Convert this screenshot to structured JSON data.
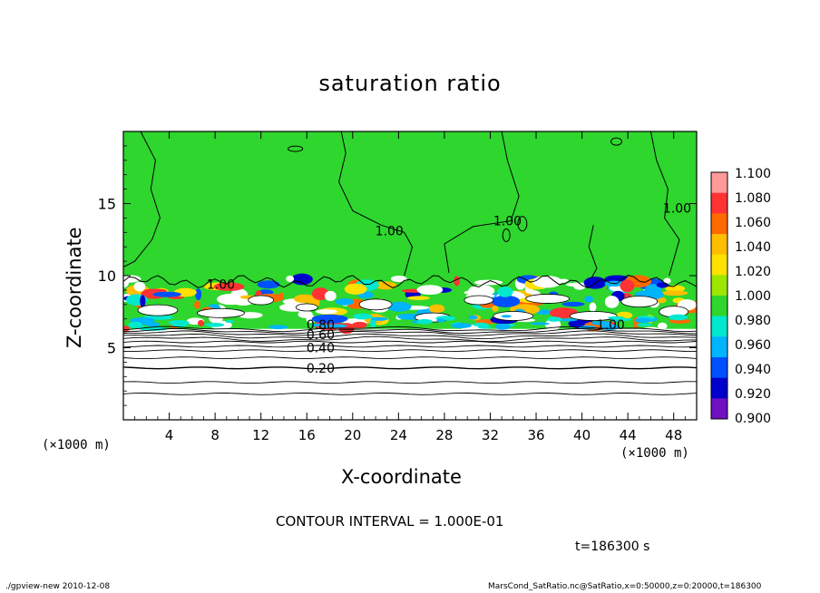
{
  "footer": {
    "left": "./gpview-new   2010-12-08",
    "right": "MarsCond_SatRatio.nc@SatRatio,x=0:50000,z=0:20000,t=186300"
  },
  "annotations": {
    "contour_interval": "CONTOUR INTERVAL = 1.000E-01",
    "time": "t=186300 s",
    "x_unit_left": "(×1000 m)",
    "x_unit_right": "(×1000 m)"
  },
  "chart_data": {
    "type": "heatmap",
    "title": "saturation ratio",
    "xlabel": "X-coordinate",
    "ylabel": "Z-coordinate",
    "xlim": [
      0,
      50
    ],
    "ylim": [
      0,
      20
    ],
    "x_ticks": [
      4,
      8,
      12,
      16,
      20,
      24,
      28,
      32,
      36,
      40,
      44,
      48
    ],
    "y_ticks": [
      5,
      10,
      15
    ],
    "colorbar": {
      "levels": [
        "1.100",
        "1.080",
        "1.060",
        "1.040",
        "1.020",
        "1.000",
        "0.980",
        "0.960",
        "0.940",
        "0.920",
        "0.900"
      ],
      "colors": [
        "#ff9a9a",
        "#ff3333",
        "#ff6a00",
        "#ffbe00",
        "#ffe100",
        "#9de600",
        "#2ed62e",
        "#00e8ce",
        "#00b4ff",
        "#0050ff",
        "#0000cc",
        "#7010c0"
      ]
    },
    "contours": [
      {
        "label": "0.20",
        "z": 3.6
      },
      {
        "label": "0.40",
        "z": 5.1
      },
      {
        "label": "0.60",
        "z": 5.8
      },
      {
        "label": "1.00",
        "z": 9.5
      }
    ],
    "contour_labels": [
      {
        "text": "1.00",
        "x": 8.5,
        "z": 9.4
      },
      {
        "text": "1.00",
        "x": 23.2,
        "z": 13.1
      },
      {
        "text": "1.00",
        "x": 33.5,
        "z": 13.8
      },
      {
        "text": "1.00",
        "x": 48.3,
        "z": 14.7
      },
      {
        "text": "1.00",
        "x": 42.5,
        "z": 6.6
      },
      {
        "text": "0.80",
        "x": 17.2,
        "z": 6.6
      },
      {
        "text": "0.60",
        "x": 17.2,
        "z": 5.9
      },
      {
        "text": "0.40",
        "x": 17.2,
        "z": 5.0
      },
      {
        "text": "0.20",
        "x": 17.2,
        "z": 3.6
      }
    ],
    "fields": {
      "upper_value": 1.0,
      "transition_layer_z": [
        6.3,
        9.8
      ],
      "lower_region": "unsaturated, contoured"
    }
  }
}
